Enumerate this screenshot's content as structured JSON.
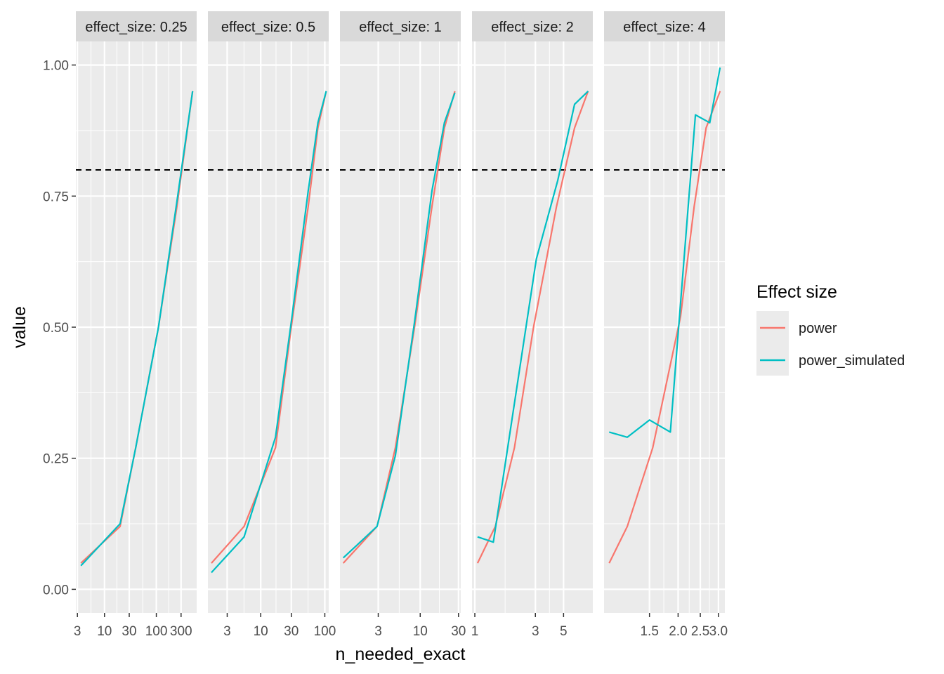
{
  "chart_data": {
    "type": "line",
    "xlabel": "n_needed_exact",
    "ylabel": "value",
    "ylim": [
      -0.045,
      1.045
    ],
    "y_ticks": [
      0.0,
      0.25,
      0.5,
      0.75,
      1.0
    ],
    "y_tick_labels": [
      "0.00",
      "0.25",
      "0.50",
      "0.75",
      "1.00"
    ],
    "x_scale": "log10",
    "facet_by": "effect_size",
    "reference_line": {
      "y": 0.8,
      "style": "dashed",
      "color": "#000000"
    },
    "legend": {
      "title": "Effect size",
      "position": "right",
      "entries": [
        {
          "name": "power",
          "color": "#F8766D"
        },
        {
          "name": "power_simulated",
          "color": "#00BFC4"
        }
      ]
    },
    "panels": [
      {
        "strip": "effect_size: 0.25",
        "x_range": [
          2.8,
          600
        ],
        "x_ticks": [
          3,
          10,
          30,
          100,
          300
        ],
        "x_tick_labels": [
          "3",
          "10",
          "30",
          "100",
          "300"
        ],
        "series": [
          {
            "name": "power",
            "x": [
              3.5,
              20,
              40,
              110,
              250,
              500
            ],
            "y": [
              0.05,
              0.12,
              0.27,
              0.5,
              0.73,
              0.95
            ]
          },
          {
            "name": "power_simulated",
            "x": [
              3.5,
              20,
              40,
              110,
              250,
              500
            ],
            "y": [
              0.045,
              0.125,
              0.27,
              0.5,
              0.74,
              0.95
            ]
          }
        ]
      },
      {
        "strip": "effect_size: 0.5",
        "x_range": [
          1.5,
          115
        ],
        "x_ticks": [
          3,
          10,
          30,
          100
        ],
        "x_tick_labels": [
          "3",
          "10",
          "30",
          "100"
        ],
        "series": [
          {
            "name": "power",
            "x": [
              1.7,
              5.5,
              17,
              30,
              55,
              78,
              105
            ],
            "y": [
              0.05,
              0.12,
              0.27,
              0.5,
              0.73,
              0.88,
              0.95
            ]
          },
          {
            "name": "power_simulated",
            "x": [
              1.7,
              5.5,
              17,
              30,
              55,
              78,
              105
            ],
            "y": [
              0.032,
              0.1,
              0.29,
              0.51,
              0.76,
              0.89,
              0.95
            ]
          }
        ]
      },
      {
        "strip": "effect_size: 1",
        "x_range": [
          1.0,
          32
        ],
        "x_ticks": [
          3,
          10,
          30
        ],
        "x_tick_labels": [
          "3",
          "10",
          "30"
        ],
        "series": [
          {
            "name": "power",
            "x": [
              1.1,
              2.9,
              4.9,
              8.5,
              14,
              20,
              27
            ],
            "y": [
              0.05,
              0.12,
              0.27,
              0.5,
              0.73,
              0.88,
              0.95
            ]
          },
          {
            "name": "power_simulated",
            "x": [
              1.1,
              2.9,
              4.9,
              8.5,
              14,
              20,
              27
            ],
            "y": [
              0.06,
              0.12,
              0.255,
              0.51,
              0.76,
              0.89,
              0.947
            ]
          }
        ]
      },
      {
        "strip": "effect_size: 2",
        "x_range": [
          0.95,
          8.5
        ],
        "x_ticks": [
          1,
          3,
          5
        ],
        "x_tick_labels": [
          "1",
          "3",
          "5"
        ],
        "series": [
          {
            "name": "power",
            "x": [
              1.05,
              1.45,
              2.05,
              2.9,
              4.4,
              6.1,
              7.8
            ],
            "y": [
              0.05,
              0.12,
              0.27,
              0.5,
              0.73,
              0.88,
              0.95
            ]
          },
          {
            "name": "power_simulated",
            "x": [
              1.05,
              1.4,
              3.05,
              4.5,
              6.1,
              7.8
            ],
            "y": [
              0.1,
              0.09,
              0.63,
              0.78,
              0.925,
              0.95
            ]
          }
        ]
      },
      {
        "strip": "effect_size: 4",
        "x_range": [
          0.95,
          3.2
        ],
        "x_ticks": [
          1.5,
          2.0,
          2.5,
          3.0
        ],
        "x_tick_labels": [
          "1.5",
          "2.0",
          "2.5",
          "3.0"
        ],
        "series": [
          {
            "name": "power",
            "x": [
              1.0,
              1.2,
              1.55,
              2.05,
              2.35,
              2.65,
              3.05
            ],
            "y": [
              0.05,
              0.12,
              0.27,
              0.52,
              0.73,
              0.88,
              0.95
            ]
          },
          {
            "name": "power_simulated",
            "x": [
              1.0,
              1.2,
              1.5,
              1.85,
              2.38,
              2.75,
              3.05
            ],
            "y": [
              0.3,
              0.29,
              0.323,
              0.3,
              0.905,
              0.89,
              0.995
            ]
          }
        ]
      }
    ]
  }
}
